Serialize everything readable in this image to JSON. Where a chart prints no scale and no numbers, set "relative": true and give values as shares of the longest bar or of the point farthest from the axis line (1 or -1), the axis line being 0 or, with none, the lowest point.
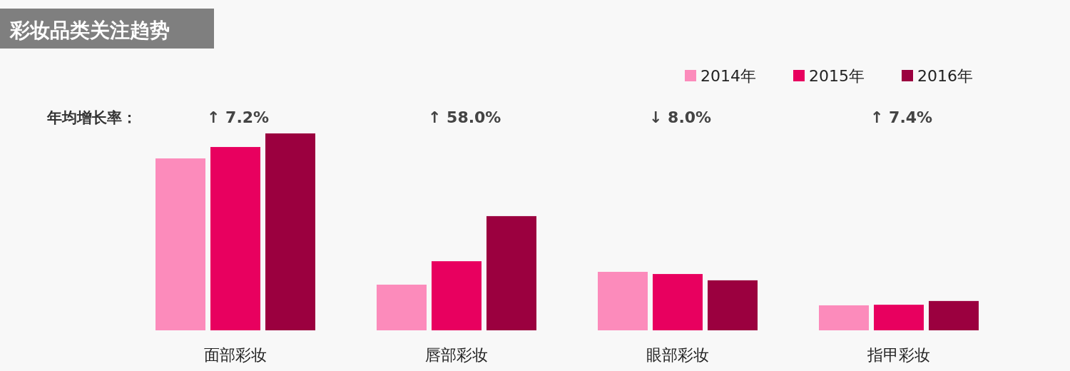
{
  "chart_data": {
    "type": "bar",
    "title": "彩妆品类关注趋势",
    "relative": true,
    "categories": [
      "面部彩妆",
      "唇部彩妆",
      "眼部彩妆",
      "指甲彩妆"
    ],
    "series": [
      {
        "name": "2014年",
        "color": "#fc8bbb",
        "values": [
          0.873,
          0.232,
          0.297,
          0.127
        ]
      },
      {
        "name": "2015年",
        "color": "#e8005f",
        "values": [
          0.931,
          0.351,
          0.286,
          0.13
        ]
      },
      {
        "name": "2016年",
        "color": "#9b003f",
        "values": [
          1,
          0.58,
          0.254,
          0.149
        ]
      }
    ],
    "annotations": [
      "年均增长率：",
      "↑ 7.2%",
      "↑ 58.0%",
      "↓ 8.0%",
      "↑ 7.4%"
    ],
    "legend": "top right",
    "grid": false
  }
}
